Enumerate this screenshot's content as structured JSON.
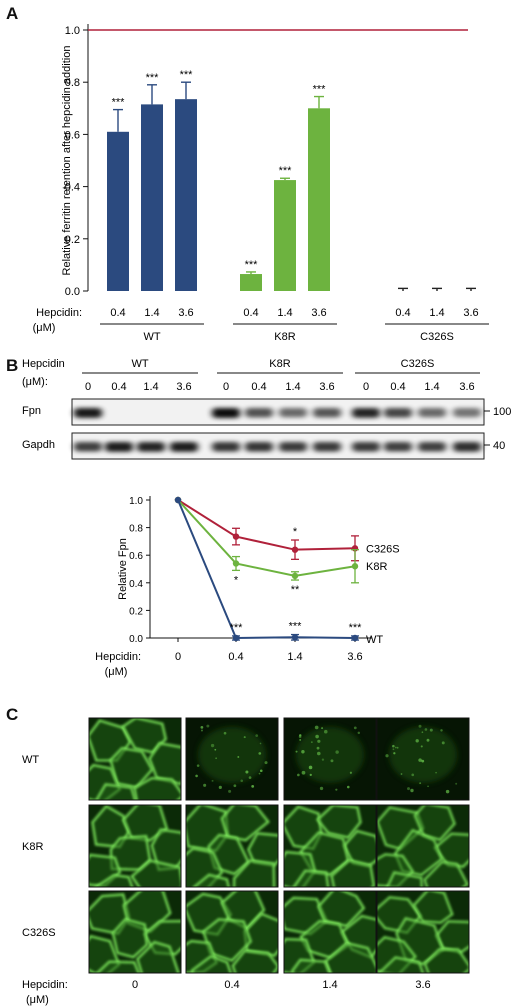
{
  "figure": {
    "panel_a_label": "A",
    "panel_b_label": "B",
    "panel_c_label": "C"
  },
  "chart_data": [
    {
      "panel": "A",
      "type": "bar",
      "ylabel": "Relative ferritin retention after hepcidin addition",
      "ylim": [
        0,
        1.0
      ],
      "yticks": [
        "0.0",
        "0.2",
        "0.4",
        "0.6",
        "0.8",
        "1.0"
      ],
      "reference_line": 1.0,
      "reference_color": "#b0213a",
      "x_label_main": "Hepcidin:",
      "x_label_unit": "(μM)",
      "groups": [
        {
          "name": "WT",
          "color": "#2b4a7f",
          "doses": [
            "0.4",
            "1.4",
            "3.6"
          ],
          "values": [
            0.61,
            0.715,
            0.735
          ],
          "errors": [
            0.085,
            0.075,
            0.065
          ],
          "sig": [
            "***",
            "***",
            "***"
          ]
        },
        {
          "name": "K8R",
          "color": "#6db33f",
          "doses": [
            "0.4",
            "1.4",
            "3.6"
          ],
          "values": [
            0.065,
            0.425,
            0.7
          ],
          "errors": [
            0.008,
            0.007,
            0.045
          ],
          "sig": [
            "***",
            "***",
            "***"
          ]
        },
        {
          "name": "C326S",
          "color": "#6db33f",
          "doses": [
            "0.4",
            "1.4",
            "3.6"
          ],
          "values": [
            0.0,
            0.0,
            0.0
          ],
          "errors": [
            0.01,
            0.01,
            0.01
          ],
          "sig": [
            "",
            "",
            ""
          ]
        }
      ]
    },
    {
      "panel": "B-blot",
      "type": "western-blot",
      "header_main": "Hepcidin",
      "header_unit": "(μM):",
      "groups": [
        {
          "name": "WT",
          "lanes": [
            "0",
            "0.4",
            "1.4",
            "3.6"
          ]
        },
        {
          "name": "K8R",
          "lanes": [
            "0",
            "0.4",
            "1.4",
            "3.6"
          ]
        },
        {
          "name": "C326S",
          "lanes": [
            "0",
            "0.4",
            "1.4",
            "3.6"
          ]
        }
      ],
      "rows": [
        {
          "name": "Fpn",
          "marker": "100",
          "intensity": [
            0.95,
            0.03,
            0.03,
            0.03,
            1.0,
            0.7,
            0.6,
            0.68,
            0.9,
            0.75,
            0.6,
            0.55
          ]
        },
        {
          "name": "Gapdh",
          "marker": "40",
          "intensity": [
            0.78,
            0.93,
            0.9,
            0.93,
            0.82,
            0.82,
            0.8,
            0.8,
            0.8,
            0.78,
            0.78,
            0.85
          ]
        }
      ]
    },
    {
      "panel": "B-plot",
      "type": "line",
      "ylabel": "Relative Fpn",
      "xlabel_main": "Hepcidin:",
      "xlabel_unit": "(μM)",
      "x": [
        "0",
        "0.4",
        "1.4",
        "3.6"
      ],
      "ylim": [
        0,
        1.0
      ],
      "yticks": [
        "0.0",
        "0.2",
        "0.4",
        "0.6",
        "0.8",
        "1.0"
      ],
      "series": [
        {
          "name": "C326S",
          "color": "#b0213a",
          "values": [
            1.0,
            0.735,
            0.64,
            0.65
          ],
          "errors": [
            0,
            0.06,
            0.07,
            0.09
          ],
          "sig": [
            "",
            "",
            "*",
            ""
          ]
        },
        {
          "name": "K8R",
          "color": "#6db33f",
          "values": [
            1.0,
            0.54,
            0.45,
            0.52
          ],
          "errors": [
            0,
            0.05,
            0.03,
            0.12
          ],
          "sig": [
            "",
            "*",
            "**",
            ""
          ]
        },
        {
          "name": "WT",
          "color": "#2b4a7f",
          "values": [
            1.0,
            0.0,
            0.005,
            0.0
          ],
          "errors": [
            0,
            0.015,
            0.02,
            0.015
          ],
          "sig": [
            "",
            "***",
            "***",
            "***"
          ]
        }
      ]
    }
  ],
  "micrographs": {
    "rows": [
      "WT",
      "K8R",
      "C326S"
    ],
    "x_label_main": "Hepcidin:",
    "x_label_unit": "(μM)",
    "doses": [
      "0",
      "0.4",
      "1.4",
      "3.6"
    ],
    "brightness": [
      [
        1.0,
        0.35,
        0.25,
        0.22
      ],
      [
        1.0,
        1.0,
        1.0,
        0.95
      ],
      [
        1.0,
        1.0,
        1.0,
        0.95
      ]
    ]
  }
}
